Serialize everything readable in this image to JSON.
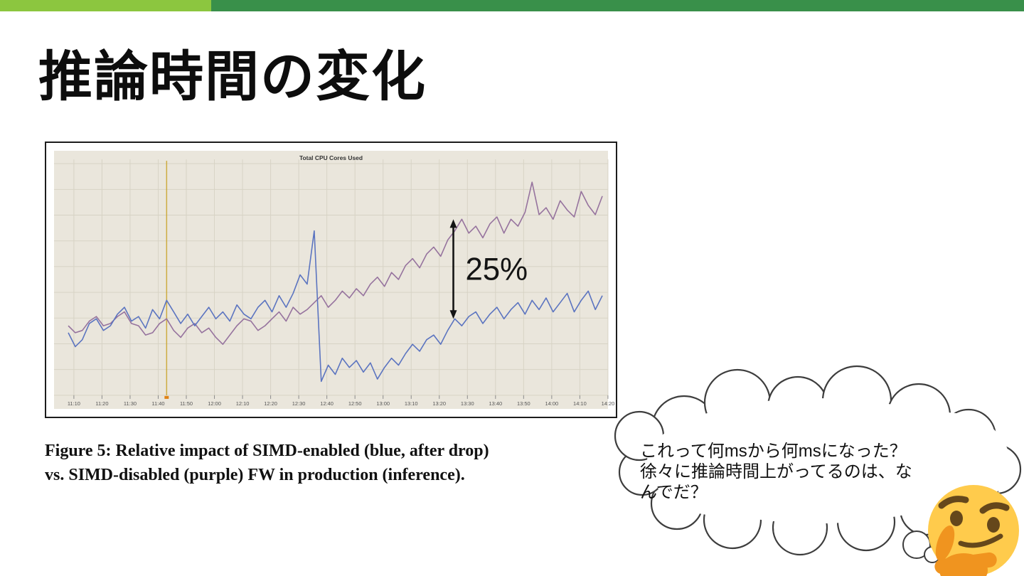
{
  "slide": {
    "title": "推論時間の変化",
    "accent_bar": {
      "light_green": "#8CC63F",
      "dark_green": "#39904A"
    }
  },
  "figure": {
    "caption_line1": "Figure 5: Relative impact of SIMD-enabled (blue, after drop)",
    "caption_line2": "vs. SIMD-disabled (purple) FW in production (inference)."
  },
  "thought_bubble": {
    "lines": [
      "これって何msから何msになった？",
      "徐々に推論時間上がってるのは、な",
      "んでだ？"
    ]
  },
  "emoji": {
    "name": "thinking-face",
    "face_color": "#FFCB4C",
    "feature_color": "#65471B",
    "hand_color": "#F0941F"
  },
  "chart_data": {
    "type": "line",
    "title": "Total CPU Cores Used",
    "plot_bg": "#EAE6DC",
    "grid_color": "#D7D3C5",
    "grid": true,
    "ylim": [
      0,
      100
    ],
    "y_axis_labels_visible": false,
    "x_tick_labels": [
      "11:10",
      "11:20",
      "11:30",
      "11:40",
      "11:50",
      "12:00",
      "12:10",
      "12:20",
      "12:30",
      "12:40",
      "12:50",
      "13:00",
      "13:10",
      "13:20",
      "13:30",
      "13:40",
      "13:50",
      "14:00",
      "14:10",
      "14:20"
    ],
    "x_start": "11:08",
    "x_step_minutes": 2.5,
    "event_line": {
      "time": "11:43",
      "color": "#C9A227",
      "marker_color": "#E08214"
    },
    "annotation_arrow": {
      "label": "25%",
      "time": "13:25",
      "from_value": 33,
      "to_value": 76,
      "color": "#141414"
    },
    "series": [
      {
        "name": "SIMD-disabled (purple)",
        "color": "#96739E",
        "values": [
          30,
          27,
          28,
          32,
          34,
          30,
          31,
          34,
          36,
          31,
          30,
          26,
          27,
          31,
          33,
          28,
          25,
          29,
          31,
          27,
          29,
          25,
          22,
          26,
          30,
          33,
          32,
          28,
          30,
          33,
          36,
          32,
          38,
          35,
          37,
          40,
          43,
          38,
          41,
          45,
          42,
          46,
          43,
          48,
          51,
          47,
          53,
          50,
          56,
          59,
          55,
          61,
          64,
          60,
          67,
          71,
          76,
          70,
          73,
          68,
          74,
          77,
          70,
          76,
          73,
          79,
          92,
          78,
          81,
          76,
          84,
          80,
          77,
          88,
          82,
          78,
          86
        ]
      },
      {
        "name": "SIMD-enabled (blue)",
        "color": "#5B74C0",
        "values": [
          27,
          21,
          24,
          31,
          33,
          28,
          30,
          35,
          38,
          32,
          34,
          29,
          37,
          33,
          41,
          36,
          31,
          35,
          30,
          34,
          38,
          33,
          36,
          32,
          39,
          35,
          33,
          38,
          41,
          36,
          43,
          38,
          44,
          52,
          48,
          71,
          6,
          13,
          9,
          16,
          12,
          15,
          10,
          14,
          7,
          12,
          16,
          13,
          18,
          22,
          19,
          24,
          26,
          22,
          28,
          33,
          30,
          34,
          36,
          31,
          35,
          38,
          33,
          37,
          40,
          35,
          41,
          37,
          42,
          36,
          40,
          44,
          36,
          41,
          45,
          37,
          43
        ]
      }
    ]
  }
}
